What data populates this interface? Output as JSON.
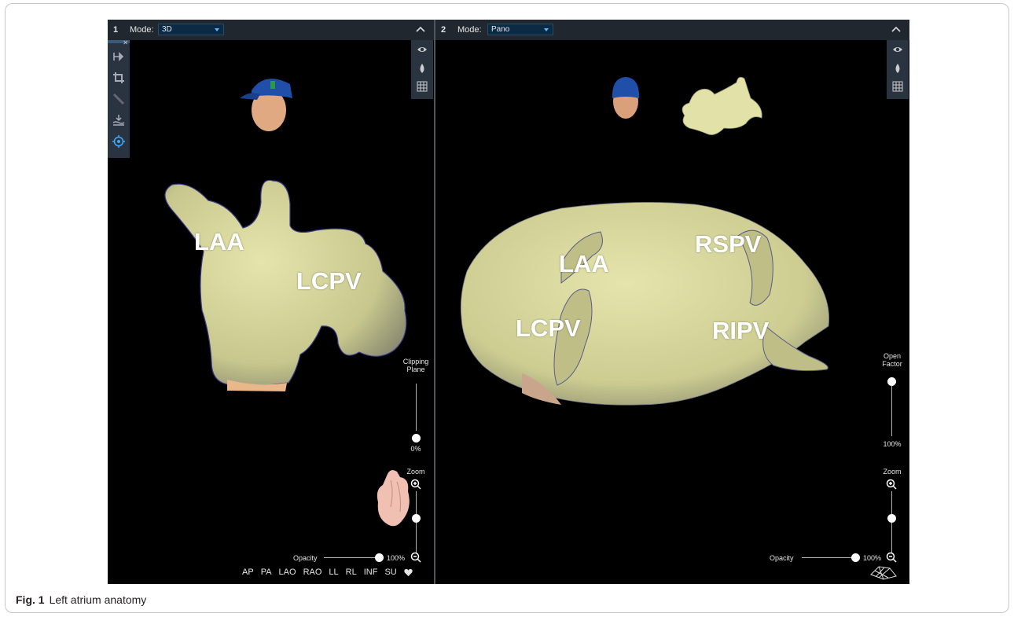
{
  "caption": {
    "label": "Fig. 1",
    "text": "Left atrium anatomy"
  },
  "viewer1": {
    "number": "1",
    "mode_label": "Mode:",
    "mode_value": "3D",
    "tools": [
      "split-icon",
      "crop-icon",
      "ruler-icon",
      "water-level-icon",
      "target-icon"
    ],
    "labels": {
      "laa": "LAA",
      "lcpv": "LCPV"
    },
    "clipping_plane": {
      "label": "Clipping\nPlane",
      "value_text": "0%",
      "value": 0
    },
    "zoom": {
      "label": "Zoom"
    },
    "opacity": {
      "label": "Opacity",
      "value_text": "100%",
      "value": 100
    },
    "views": [
      "AP",
      "PA",
      "LAO",
      "RAO",
      "LL",
      "RL",
      "INF",
      "SU"
    ]
  },
  "viewer2": {
    "number": "2",
    "mode_label": "Mode:",
    "mode_value": "Pano",
    "labels": {
      "laa": "LAA",
      "rspv": "RSPV",
      "lcpv": "LCPV",
      "ripv": "RIPV"
    },
    "open_factor": {
      "label": "Open\nFactor",
      "value_text": "100%",
      "value": 100
    },
    "zoom": {
      "label": "Zoom"
    },
    "opacity": {
      "label": "Opacity",
      "value_text": "100%",
      "value": 100
    }
  },
  "colors": {
    "anatomy": "#dcdca0",
    "header": "#20272e",
    "toolbar": "#2a3440",
    "accent": "#3fa9f5"
  }
}
